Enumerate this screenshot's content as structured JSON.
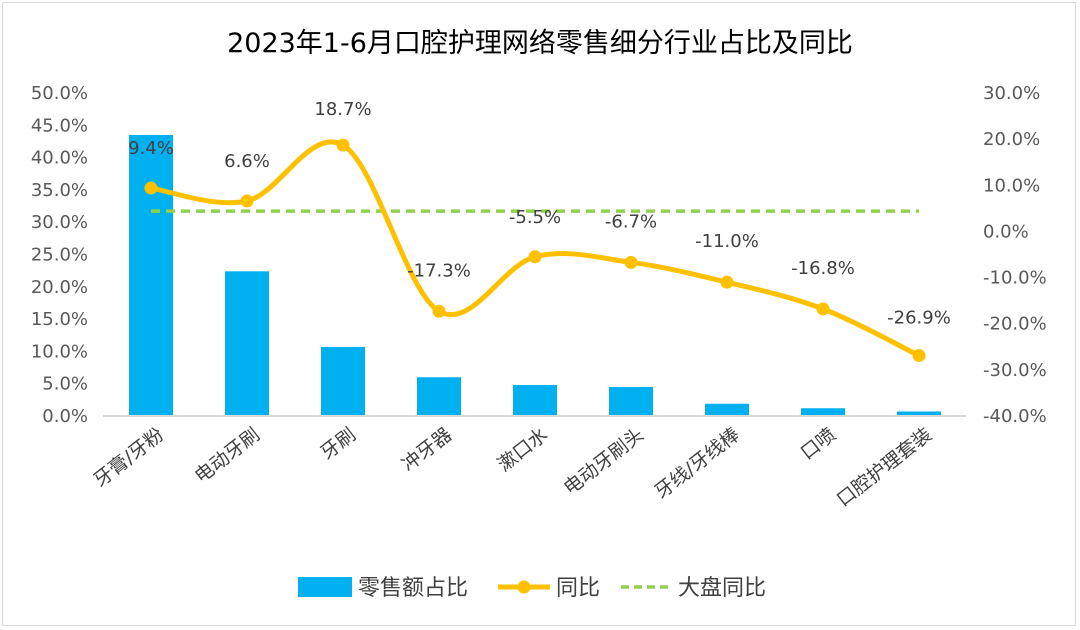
{
  "chart_data": {
    "type": "bar+line",
    "title": "2023年1-6月口腔护理网络零售细分行业占比及同比",
    "categories": [
      "牙膏/牙粉",
      "电动牙刷",
      "牙刷",
      "冲牙器",
      "漱口水",
      "电动牙刷头",
      "牙线/牙线棒",
      "口喷",
      "口腔护理套装"
    ],
    "series": [
      {
        "name": "零售额占比",
        "type": "bar",
        "axis": "left",
        "color": "#00B0F0",
        "values": [
          43.5,
          22.4,
          10.7,
          6.0,
          4.8,
          4.5,
          1.9,
          1.2,
          0.7
        ]
      },
      {
        "name": "同比",
        "type": "line",
        "axis": "right",
        "color": "#FFC000",
        "values": [
          9.4,
          6.6,
          18.7,
          -17.3,
          -5.5,
          -6.7,
          -11.0,
          -16.8,
          -26.9
        ],
        "labels": [
          "9.4%",
          "6.6%",
          "18.7%",
          "-17.3%",
          "-5.5%",
          "-6.7%",
          "-11.0%",
          "-16.8%",
          "-26.9%"
        ]
      },
      {
        "name": "大盘同比",
        "type": "line",
        "style": "dashed",
        "axis": "right",
        "color": "#92D050",
        "value": 4.4
      }
    ],
    "left_axis": {
      "ylim": [
        0,
        50
      ],
      "ticks": [
        "0.0%",
        "5.0%",
        "10.0%",
        "15.0%",
        "20.0%",
        "25.0%",
        "30.0%",
        "35.0%",
        "40.0%",
        "45.0%",
        "50.0%"
      ]
    },
    "right_axis": {
      "ylim": [
        -40,
        30
      ],
      "ticks": [
        "-40.0%",
        "-30.0%",
        "-20.0%",
        "-10.0%",
        "0.0%",
        "10.0%",
        "20.0%",
        "30.0%"
      ]
    },
    "grid": false,
    "legend": "bottom"
  }
}
